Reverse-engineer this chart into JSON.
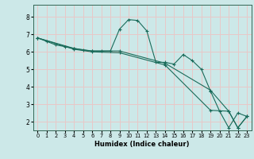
{
  "xlabel": "Humidex (Indice chaleur)",
  "background_color": "#cce8e8",
  "grid_color": "#e8c8c8",
  "line_color": "#1a6b5a",
  "xlim": [
    -0.5,
    23.5
  ],
  "ylim": [
    1.5,
    8.7
  ],
  "yticks": [
    2,
    3,
    4,
    5,
    6,
    7,
    8
  ],
  "xticks": [
    0,
    1,
    2,
    3,
    4,
    5,
    6,
    7,
    8,
    9,
    10,
    11,
    12,
    13,
    14,
    15,
    16,
    17,
    18,
    19,
    20,
    21,
    22,
    23
  ],
  "series1_x": [
    0,
    1,
    2,
    3,
    4,
    5,
    6,
    7,
    8,
    9,
    10,
    11,
    12,
    13,
    14,
    15,
    16,
    17,
    18,
    19,
    20,
    21,
    22,
    23
  ],
  "series1_y": [
    6.8,
    6.6,
    6.4,
    6.3,
    6.2,
    6.1,
    6.05,
    6.05,
    6.05,
    7.3,
    7.85,
    7.8,
    7.2,
    5.4,
    5.4,
    5.3,
    5.85,
    5.5,
    5.0,
    3.75,
    2.6,
    1.65,
    2.5,
    2.3
  ],
  "series2_x": [
    0,
    4,
    6,
    9,
    14,
    19,
    21,
    22,
    23
  ],
  "series2_y": [
    6.8,
    6.2,
    6.05,
    6.05,
    5.35,
    3.8,
    2.6,
    1.65,
    2.3
  ],
  "series3_x": [
    0,
    4,
    6,
    9,
    14,
    19,
    21,
    22,
    23
  ],
  "series3_y": [
    6.8,
    6.15,
    6.0,
    5.95,
    5.25,
    2.65,
    2.6,
    1.65,
    2.3
  ]
}
